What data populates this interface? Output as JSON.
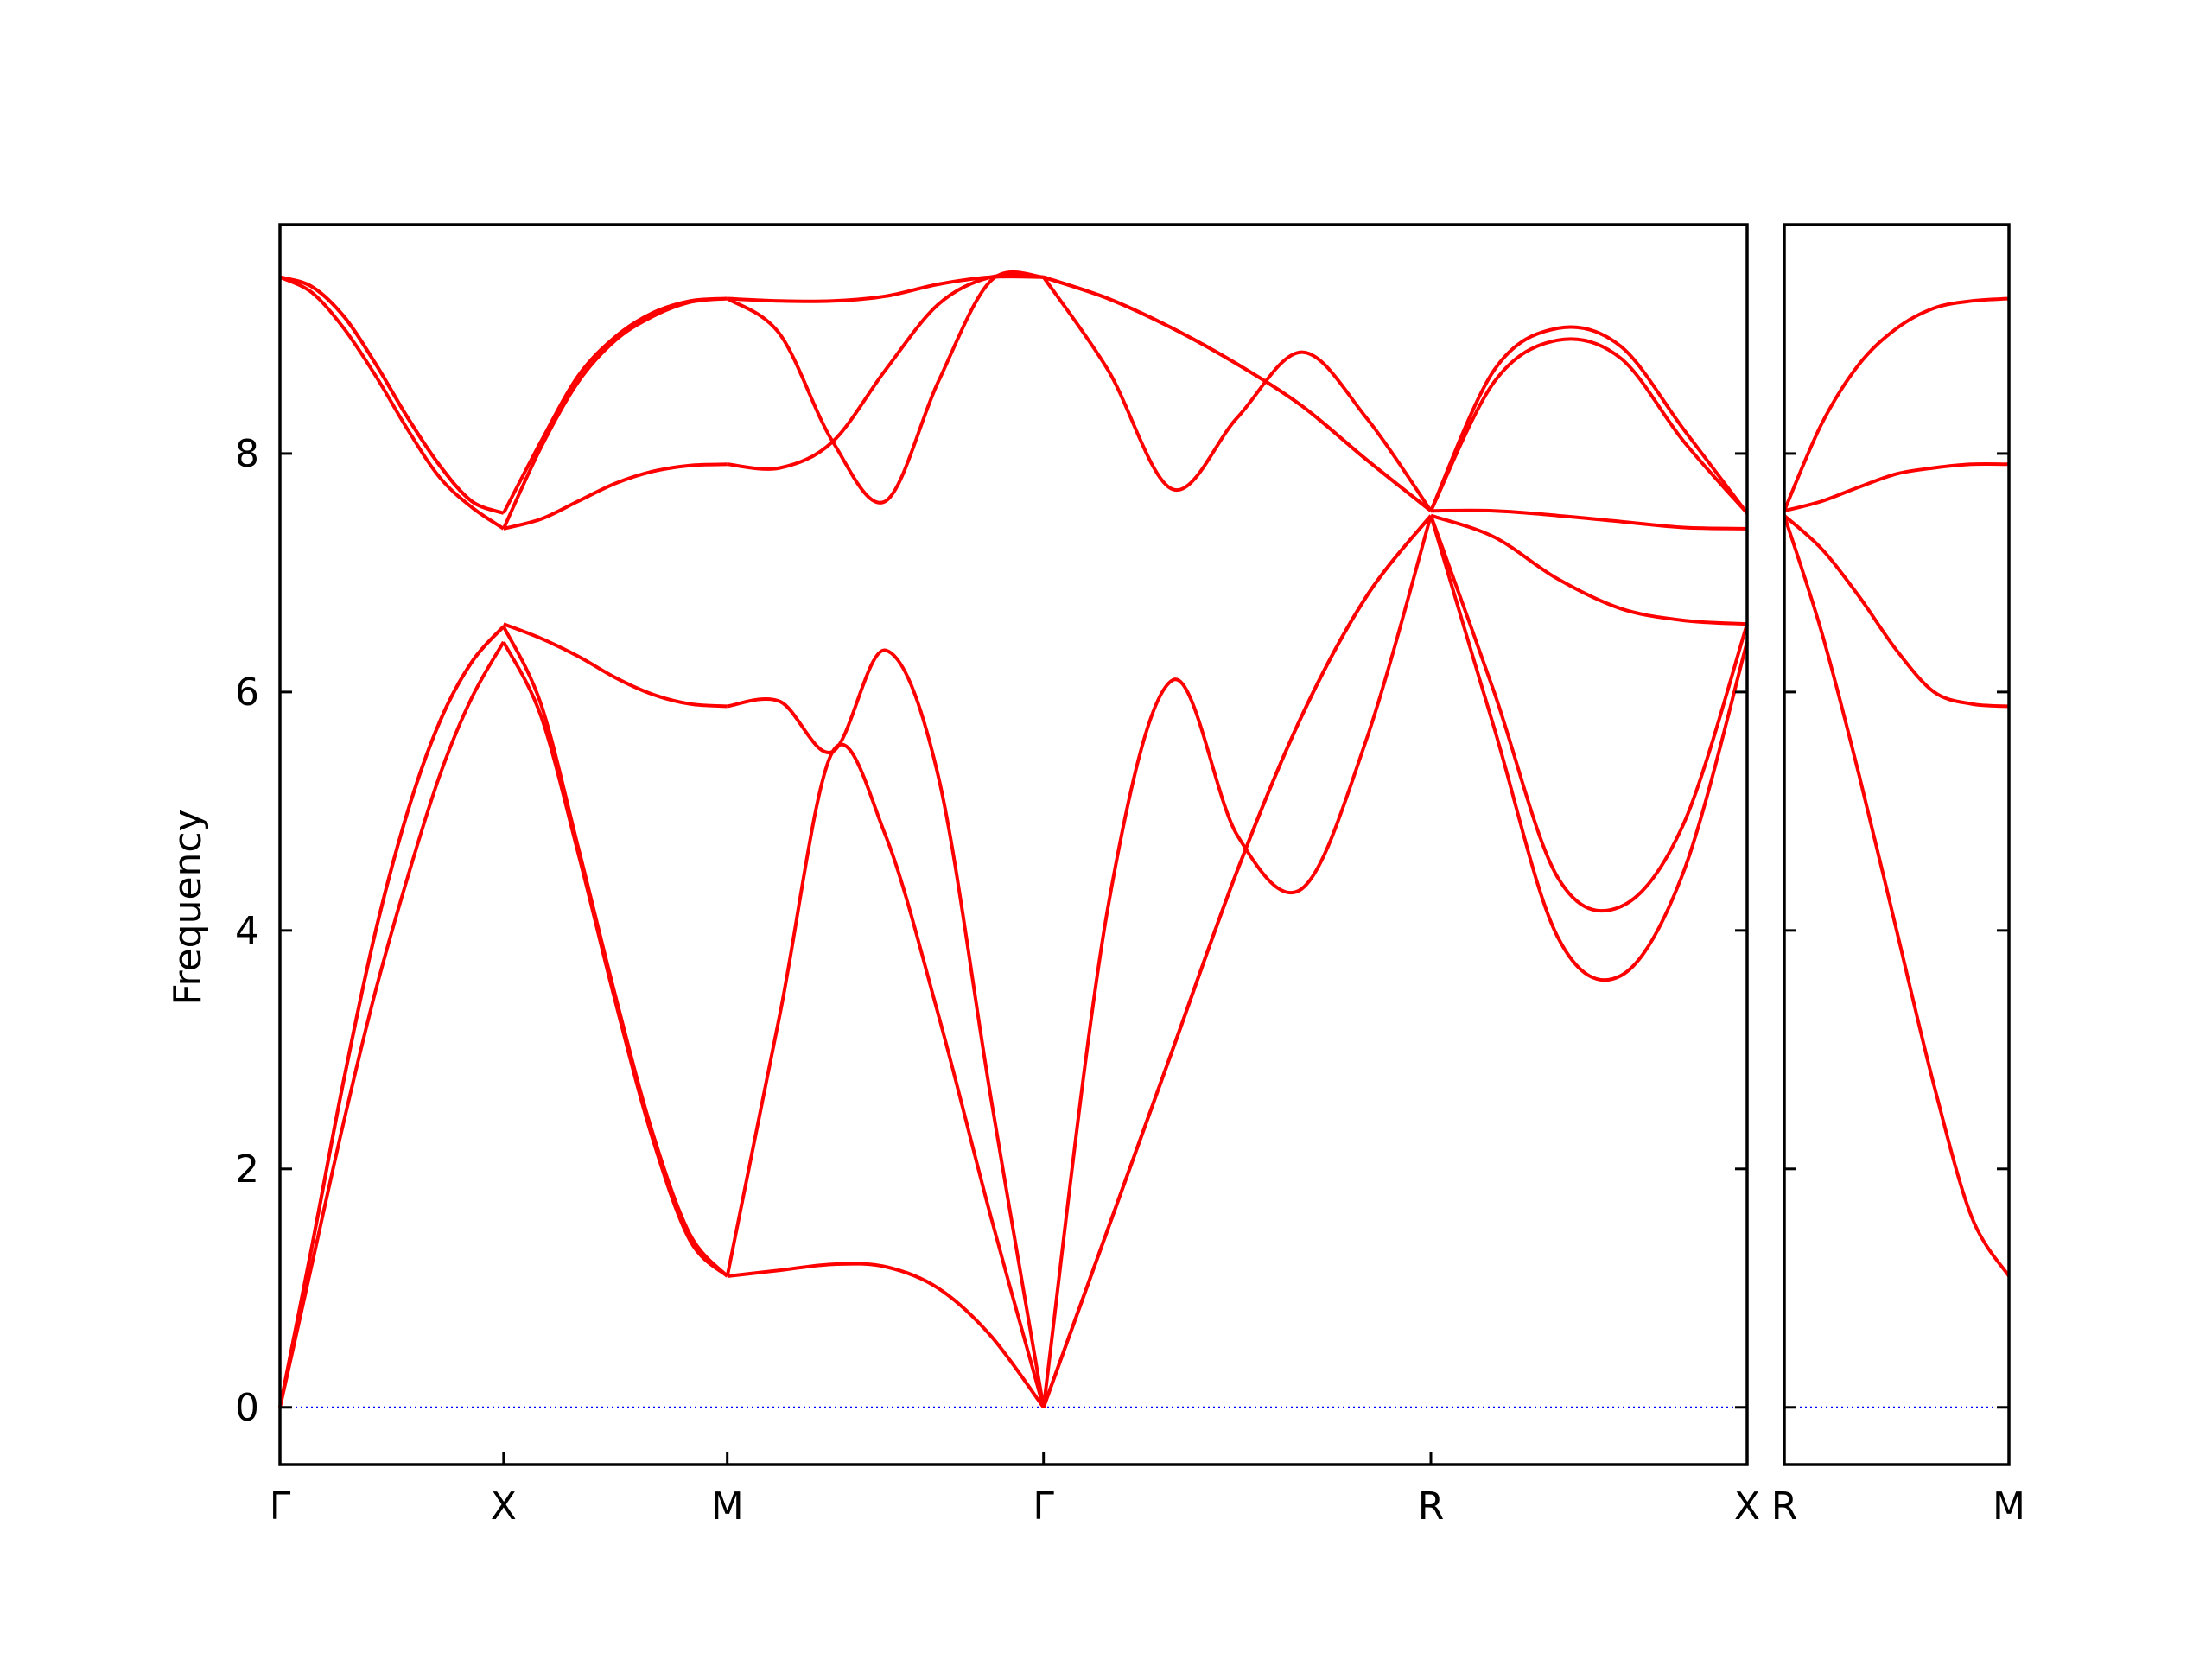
{
  "chart_data": {
    "type": "line",
    "title": "",
    "ylabel": "Frequency",
    "ylim": [
      -0.48,
      9.92
    ],
    "yticks": [
      0,
      2,
      4,
      6,
      8
    ],
    "grid": false,
    "colors": {
      "bands": "#ff0000",
      "zero_line": "#0000ff",
      "axes": "#000000"
    },
    "panels": [
      {
        "segments": [
          {
            "from": "Γ",
            "to": "X",
            "length": 1.0,
            "bands": [
              [
                0.0,
                1.2,
                2.4,
                3.5,
                4.45,
                5.3,
                5.95,
                6.42
              ],
              [
                0.0,
                1.35,
                2.75,
                4.0,
                5.0,
                5.75,
                6.25,
                6.55
              ],
              [
                0.0,
                1.35,
                2.75,
                4.0,
                5.0,
                5.75,
                6.25,
                6.55
              ],
              [
                9.48,
                9.35,
                9.05,
                8.65,
                8.2,
                7.8,
                7.55,
                7.37
              ],
              [
                9.48,
                9.4,
                9.15,
                8.75,
                8.3,
                7.9,
                7.6,
                7.5
              ],
              [
                9.48,
                9.4,
                9.15,
                8.75,
                8.3,
                7.9,
                7.6,
                7.5
              ]
            ]
          },
          {
            "from": "X",
            "to": "M",
            "length": 1.0,
            "bands": [
              [
                6.42,
                5.8,
                4.65,
                3.4,
                2.25,
                1.4,
                1.1
              ],
              [
                6.55,
                5.9,
                4.7,
                3.45,
                2.3,
                1.45,
                1.1
              ],
              [
                6.57,
                6.45,
                6.3,
                6.12,
                5.98,
                5.9,
                5.88
              ],
              [
                7.37,
                7.45,
                7.6,
                7.75,
                7.85,
                7.9,
                7.91
              ],
              [
                7.37,
                8.05,
                8.6,
                8.95,
                9.15,
                9.27,
                9.3
              ],
              [
                7.5,
                8.1,
                8.65,
                8.98,
                9.18,
                9.28,
                9.3
              ]
            ]
          },
          {
            "from": "M",
            "to": "Γ",
            "length": 1.414,
            "bands": [
              [
                1.1,
                1.15,
                1.2,
                1.18,
                1.0,
                0.6,
                0.0
              ],
              [
                1.1,
                3.3,
                5.5,
                4.8,
                3.3,
                1.6,
                0.0
              ],
              [
                5.88,
                5.92,
                5.5,
                6.35,
                5.3,
                2.6,
                0.0
              ],
              [
                7.91,
                7.88,
                8.1,
                8.7,
                9.25,
                9.48,
                9.48
              ],
              [
                9.3,
                9.0,
                8.1,
                7.6,
                8.6,
                9.45,
                9.48
              ],
              [
                9.3,
                9.28,
                9.28,
                9.32,
                9.42,
                9.48,
                9.48
              ]
            ]
          },
          {
            "from": "Γ",
            "to": "R",
            "length": 1.732,
            "bands": [
              [
                0.0,
                1.5,
                3.0,
                4.5,
                5.8,
                6.8,
                7.48
              ],
              [
                0.0,
                4.2,
                6.1,
                4.8,
                4.35,
                5.6,
                7.48
              ],
              [
                0.0,
                1.5,
                3.0,
                4.5,
                5.8,
                6.8,
                7.48
              ],
              [
                9.48,
                9.3,
                9.05,
                8.75,
                8.4,
                7.95,
                7.52
              ],
              [
                9.48,
                8.7,
                7.7,
                8.3,
                8.85,
                8.3,
                7.52
              ],
              [
                9.48,
                9.3,
                9.05,
                8.75,
                8.4,
                7.95,
                7.52
              ]
            ]
          },
          {
            "from": "R",
            "to": "X",
            "length": 1.414,
            "bands": [
              [
                7.48,
                5.7,
                3.95,
                3.62,
                4.5,
                6.42
              ],
              [
                7.48,
                6.0,
                4.45,
                4.2,
                4.9,
                6.57
              ],
              [
                7.48,
                7.3,
                6.95,
                6.7,
                6.6,
                6.57
              ],
              [
                7.52,
                7.52,
                7.48,
                7.43,
                7.38,
                7.37
              ],
              [
                7.52,
                8.6,
                8.95,
                8.8,
                8.1,
                7.5
              ],
              [
                7.52,
                8.7,
                9.05,
                8.9,
                8.2,
                7.5
              ]
            ]
          }
        ],
        "labels": [
          "Γ",
          "X",
          "M",
          "Γ",
          "R",
          "X"
        ]
      },
      {
        "segments": [
          {
            "from": "R",
            "to": "M",
            "length": 1.0,
            "bands": [
              [
                7.48,
                6.5,
                5.3,
                4.0,
                2.7,
                1.6,
                1.1
              ],
              [
                7.48,
                7.2,
                6.8,
                6.35,
                6.0,
                5.9,
                5.88
              ],
              [
                7.52,
                7.6,
                7.72,
                7.83,
                7.88,
                7.91,
                7.91
              ],
              [
                7.52,
                8.25,
                8.75,
                9.05,
                9.22,
                9.28,
                9.3
              ]
            ]
          }
        ],
        "labels": [
          "R",
          "M"
        ]
      }
    ]
  }
}
